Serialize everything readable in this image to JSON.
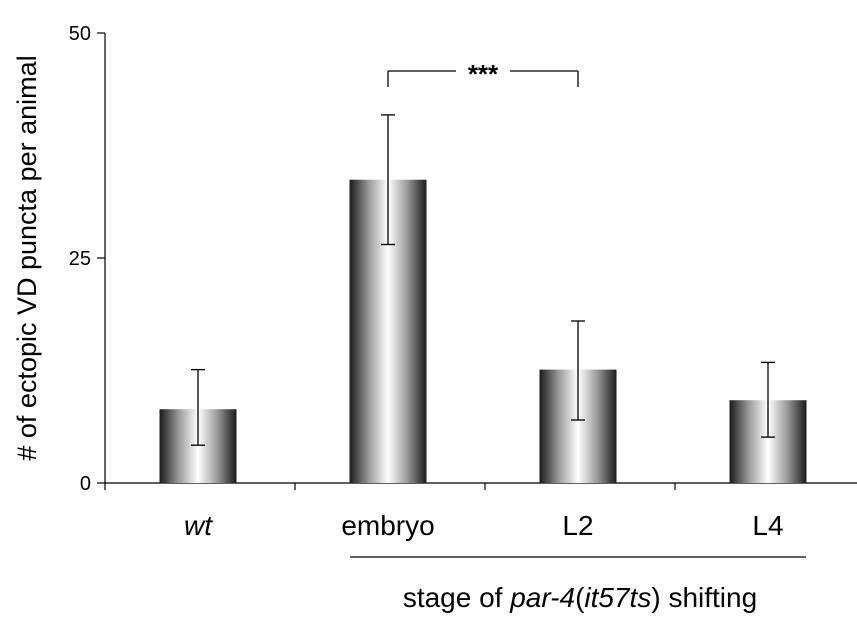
{
  "chart_data": {
    "type": "bar",
    "categories": [
      "wt",
      "embryo",
      "L2",
      "L4"
    ],
    "category_italic": [
      true,
      false,
      false,
      false
    ],
    "values": [
      8.2,
      33.7,
      12.6,
      9.2
    ],
    "error_low": [
      4.2,
      26.5,
      7.0,
      5.1
    ],
    "error_high": [
      12.6,
      40.9,
      18.0,
      13.4
    ],
    "ylabel": "# of ectopic VD puncta per animal",
    "ylim": [
      0,
      50
    ],
    "yticks": [
      0,
      25,
      50
    ],
    "grid": false,
    "bar_fill": "cylindrical grayscale gradient",
    "group_bracket": {
      "label_parts": [
        {
          "text": "stage of ",
          "italic": false
        },
        {
          "text": "par-4",
          "italic": true
        },
        {
          "text": "(",
          "italic": false
        },
        {
          "text": "it57ts",
          "italic": true
        },
        {
          "text": ") shifting",
          "italic": false
        }
      ],
      "spans": [
        "embryo",
        "L2",
        "L4"
      ]
    },
    "significance": {
      "from": "embryo",
      "to": "L2",
      "label": "***"
    }
  }
}
